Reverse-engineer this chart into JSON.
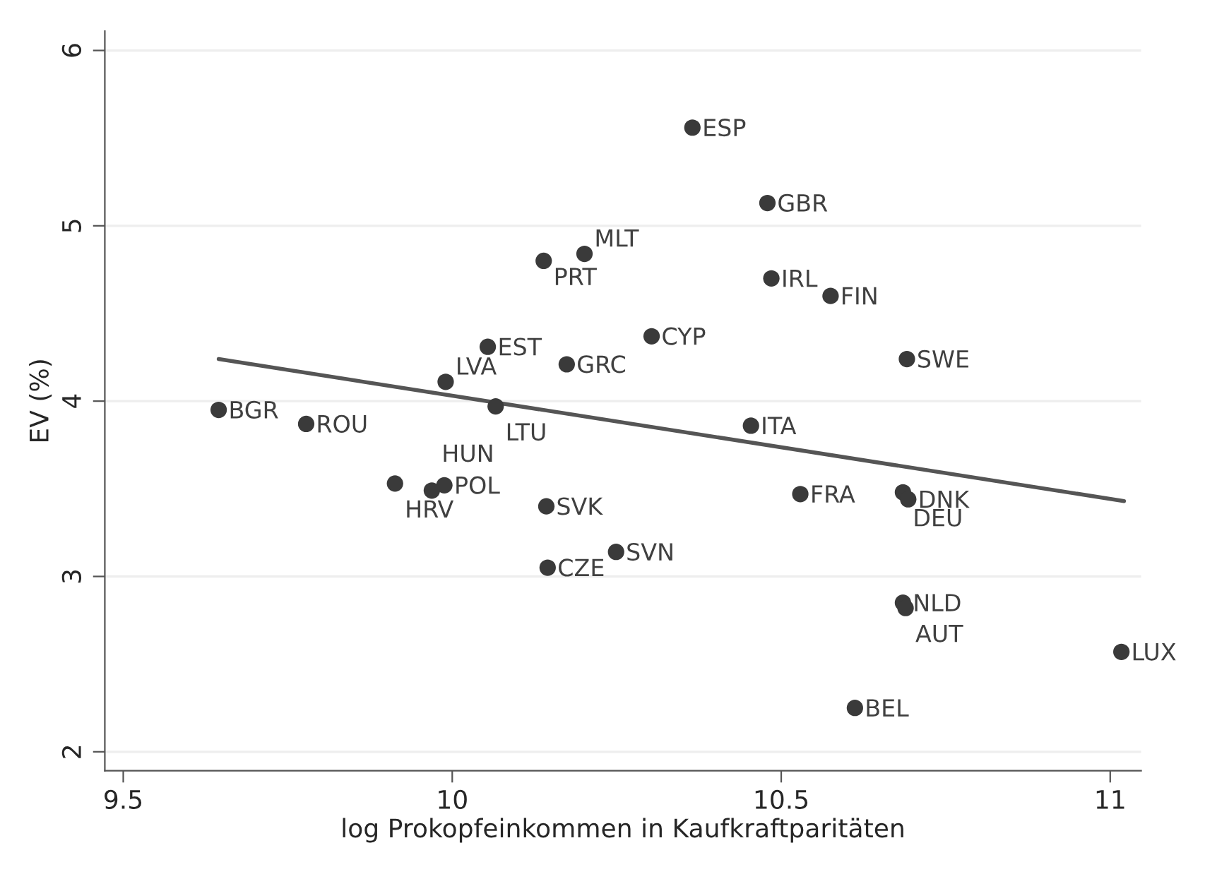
{
  "chart_data": {
    "type": "scatter",
    "xlabel": "log Prokopfeinkommen in Kaufkraftparitäten",
    "ylabel": "EV (%)",
    "xlim": [
      9.472,
      11.047
    ],
    "ylim": [
      1.892,
      6.11
    ],
    "xticks": [
      9.5,
      10,
      10.5,
      11
    ],
    "yticks": [
      2,
      3,
      4,
      5,
      6
    ],
    "grid": "y",
    "legend": false,
    "series": [
      {
        "color": "#3a3a3a",
        "marker": "circle",
        "x": [
          9.645,
          9.778,
          9.99,
          10.066,
          10.054,
          10.174,
          10.139,
          10.201,
          10.365,
          10.479,
          10.485,
          10.575,
          10.303,
          10.691,
          10.454,
          9.913,
          9.988,
          9.969,
          10.143,
          10.145,
          10.249,
          10.529,
          10.685,
          10.693,
          10.685,
          10.689,
          10.612,
          11.017
        ],
        "values": [
          3.95,
          3.87,
          4.11,
          3.97,
          4.31,
          4.21,
          4.8,
          4.84,
          5.56,
          5.13,
          4.7,
          4.6,
          4.37,
          4.24,
          3.86,
          3.53,
          3.52,
          3.49,
          3.4,
          3.05,
          3.14,
          3.47,
          3.48,
          3.44,
          2.85,
          2.82,
          2.25,
          2.57
        ]
      },
      {
        "type": "line",
        "color": "#555555",
        "line_style": "solid",
        "x": [
          9.645,
          11.021
        ],
        "values": [
          4.24,
          3.43
        ]
      }
    ],
    "annotations": [
      {
        "text": "BGR",
        "x": 9.645,
        "y": 3.95
      },
      {
        "text": "ROU",
        "x": 9.778,
        "y": 3.87
      },
      {
        "text": "LVA",
        "x": 9.99,
        "y": 4.11
      },
      {
        "text": "LTU",
        "x": 10.066,
        "y": 3.97
      },
      {
        "text": "EST",
        "x": 10.054,
        "y": 4.31
      },
      {
        "text": "GRC",
        "x": 10.174,
        "y": 4.21
      },
      {
        "text": "PRT",
        "x": 10.139,
        "y": 4.8
      },
      {
        "text": "MLT",
        "x": 10.201,
        "y": 4.84
      },
      {
        "text": "ESP",
        "x": 10.365,
        "y": 5.56
      },
      {
        "text": "GBR",
        "x": 10.479,
        "y": 5.13
      },
      {
        "text": "IRL",
        "x": 10.485,
        "y": 4.7
      },
      {
        "text": "FIN",
        "x": 10.575,
        "y": 4.6
      },
      {
        "text": "CYP",
        "x": 10.303,
        "y": 4.37
      },
      {
        "text": "SWE",
        "x": 10.691,
        "y": 4.24
      },
      {
        "text": "ITA",
        "x": 10.454,
        "y": 3.86
      },
      {
        "text": "HRV",
        "x": 9.913,
        "y": 3.53
      },
      {
        "text": "POL",
        "x": 9.988,
        "y": 3.52
      },
      {
        "text": "HUN",
        "x": 9.969,
        "y": 3.49
      },
      {
        "text": "SVK",
        "x": 10.143,
        "y": 3.4
      },
      {
        "text": "CZE",
        "x": 10.145,
        "y": 3.05
      },
      {
        "text": "SVN",
        "x": 10.249,
        "y": 3.14
      },
      {
        "text": "FRA",
        "x": 10.529,
        "y": 3.47
      },
      {
        "text": "DEU",
        "x": 10.685,
        "y": 3.48
      },
      {
        "text": "DNK",
        "x": 10.693,
        "y": 3.44
      },
      {
        "text": "NLD",
        "x": 10.685,
        "y": 2.85
      },
      {
        "text": "AUT",
        "x": 10.689,
        "y": 2.82
      },
      {
        "text": "BEL",
        "x": 10.612,
        "y": 2.25
      },
      {
        "text": "LUX",
        "x": 11.017,
        "y": 2.57
      }
    ]
  }
}
